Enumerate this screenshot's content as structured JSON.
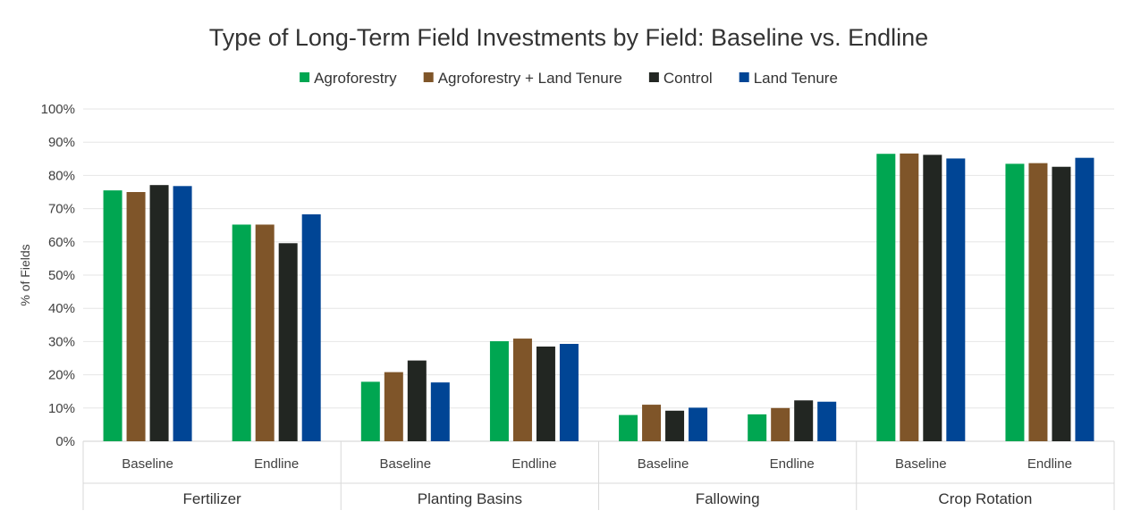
{
  "chart_data": {
    "type": "bar",
    "title": "Type of Long-Term Field Investments by Field: Baseline vs. Endline",
    "ylabel": "% of Fields",
    "ylim": [
      0,
      100
    ],
    "yticks": [
      "0%",
      "10%",
      "20%",
      "30%",
      "40%",
      "50%",
      "60%",
      "70%",
      "80%",
      "90%",
      "100%"
    ],
    "grid": true,
    "legend_position": "top",
    "groups": [
      "Fertilizer",
      "Planting Basins",
      "Fallowing",
      "Crop Rotation"
    ],
    "categories": [
      "Baseline",
      "Endline",
      "Baseline",
      "Endline",
      "Baseline",
      "Endline",
      "Baseline",
      "Endline"
    ],
    "series": [
      {
        "name": "Agroforestry",
        "color": "#00A651",
        "values": [
          75.5,
          65.2,
          17.9,
          30.1,
          7.9,
          8.1,
          86.5,
          83.5
        ]
      },
      {
        "name": "Agroforestry + Land Tenure",
        "color": "#7F5529",
        "values": [
          75,
          65.2,
          20.8,
          30.9,
          11,
          10,
          86.6,
          83.7
        ]
      },
      {
        "name": "Control",
        "color": "#222622",
        "values": [
          77.1,
          59.6,
          24.3,
          28.5,
          9.2,
          12.3,
          86.2,
          82.6
        ]
      },
      {
        "name": "Land Tenure",
        "color": "#004595",
        "values": [
          76.8,
          68.3,
          17.7,
          29.3,
          10.1,
          11.9,
          85.1,
          85.3
        ]
      }
    ]
  }
}
